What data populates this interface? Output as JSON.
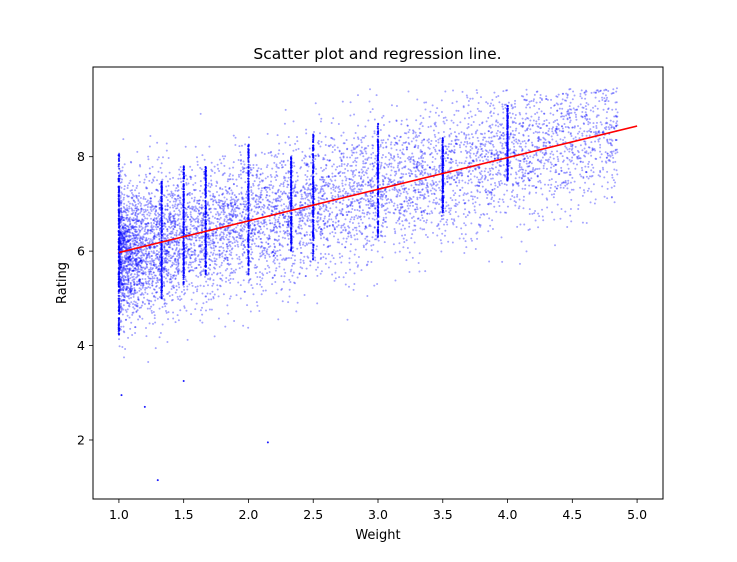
{
  "chart_data": {
    "type": "scatter",
    "title": "Scatter plot and regression line.",
    "xlabel": "Weight",
    "ylabel": "Rating",
    "xlim": [
      0.8,
      5.2
    ],
    "ylim": [
      0.75,
      9.9
    ],
    "xticks": [
      1.0,
      1.5,
      2.0,
      2.5,
      3.0,
      3.5,
      4.0,
      4.5,
      5.0
    ],
    "xtick_labels": [
      "1.0",
      "1.5",
      "2.0",
      "2.5",
      "3.0",
      "3.5",
      "4.0",
      "4.5",
      "5.0"
    ],
    "yticks": [
      2,
      4,
      6,
      8
    ],
    "ytick_labels": [
      "2",
      "4",
      "6",
      "8"
    ],
    "grid": false,
    "scatter_color": "#0000ff",
    "line_color": "#ff0000",
    "regression_line": {
      "x": [
        1.0,
        5.0
      ],
      "y": [
        5.97,
        8.65
      ]
    },
    "vertical_clusters": [
      {
        "x": 1.0,
        "y_range": [
          4.2,
          8.1
        ]
      },
      {
        "x": 1.33,
        "y_range": [
          5.0,
          7.5
        ]
      },
      {
        "x": 1.5,
        "y_range": [
          5.3,
          7.8
        ]
      },
      {
        "x": 1.67,
        "y_range": [
          5.5,
          7.8
        ]
      },
      {
        "x": 2.0,
        "y_range": [
          5.5,
          8.3
        ]
      },
      {
        "x": 2.33,
        "y_range": [
          6.0,
          8.0
        ]
      },
      {
        "x": 2.5,
        "y_range": [
          5.8,
          8.5
        ]
      },
      {
        "x": 3.0,
        "y_range": [
          6.3,
          8.7
        ]
      },
      {
        "x": 3.5,
        "y_range": [
          6.8,
          8.4
        ]
      },
      {
        "x": 4.0,
        "y_range": [
          7.5,
          9.1
        ]
      }
    ],
    "outliers": [
      {
        "x": 1.3,
        "y": 1.15
      },
      {
        "x": 2.15,
        "y": 1.95
      },
      {
        "x": 1.2,
        "y": 2.7
      },
      {
        "x": 1.02,
        "y": 2.95
      },
      {
        "x": 1.5,
        "y": 3.25
      }
    ]
  }
}
